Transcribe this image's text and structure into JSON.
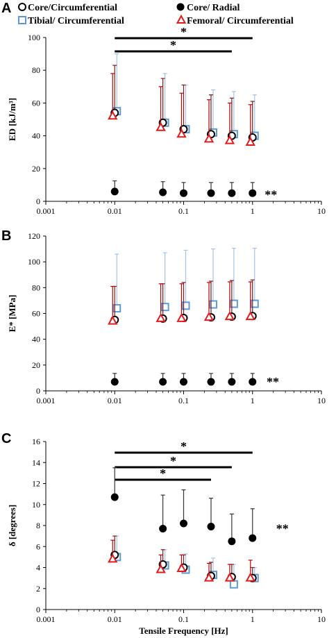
{
  "legend": [
    {
      "series": "core_circ",
      "label": "Core/Circumferential"
    },
    {
      "series": "core_radial",
      "label": "Core/ Radial"
    },
    {
      "series": "tibial_circ",
      "label": "Tibial/ Circumferential"
    },
    {
      "series": "femoral_circ",
      "label": "Femoral/ Circumferential"
    }
  ],
  "series_styles": {
    "core_circ": {
      "marker": "open-circle",
      "color": "#000000",
      "error_color": "#7a1a1a"
    },
    "core_radial": {
      "marker": "filled-circle",
      "color": "#000000",
      "error_color": "#333333"
    },
    "tibial_circ": {
      "marker": "open-square",
      "color": "#5b9bd5",
      "error_color": "#a6c3e3"
    },
    "femoral_circ": {
      "marker": "open-triangle",
      "color": "#e31a1c",
      "error_color": "#c00000"
    }
  },
  "xlabel_shared": "Tensile Frequency [Hz]",
  "chart_data": [
    {
      "panel": "A",
      "type": "scatter",
      "xscale": "log",
      "xlim": [
        0.001,
        10
      ],
      "xticks": [
        "0.001",
        "0.01",
        "0.1",
        "1",
        "10"
      ],
      "ylabel": "ED [kJ/m³]",
      "ylim": [
        0,
        100
      ],
      "yticks": [
        "0",
        "20",
        "40",
        "60",
        "80",
        "100"
      ],
      "x": [
        0.01,
        0.05,
        0.1,
        0.25,
        0.5,
        1
      ],
      "series": [
        {
          "key": "core_circ",
          "name": "Core/Circumferential",
          "values": [
            54,
            48,
            44,
            41,
            40,
            39
          ],
          "error": [
            29,
            27,
            27,
            24,
            23,
            22
          ]
        },
        {
          "key": "core_radial",
          "name": "Core/ Radial",
          "values": [
            6,
            5.5,
            5,
            5,
            5,
            5
          ],
          "error": [
            6.5,
            6.5,
            6.5,
            6.5,
            6.5,
            6.5
          ]
        },
        {
          "key": "tibial_circ",
          "name": "Tibial/ Circumferential",
          "values": [
            55,
            48,
            44,
            42,
            41,
            40
          ],
          "error": [
            35,
            30,
            27,
            26,
            26,
            25
          ]
        },
        {
          "key": "femoral_circ",
          "name": "Femoral/ Circumferential",
          "values": [
            52,
            45,
            41,
            38,
            37,
            36
          ],
          "error": [
            26,
            25,
            25,
            24,
            23,
            23
          ]
        }
      ],
      "significance_bars": [
        {
          "from": 0.01,
          "to": 1,
          "label": "*"
        },
        {
          "from": 0.01,
          "to": 0.5,
          "label": "*"
        }
      ],
      "annotations": [
        {
          "x": 1.5,
          "y": 4,
          "label": "**"
        }
      ]
    },
    {
      "panel": "B",
      "type": "scatter",
      "xscale": "log",
      "xlim": [
        0.001,
        10
      ],
      "xticks": [
        "0.001",
        "0.01",
        "0.1",
        "1",
        "10"
      ],
      "ylabel": "E* [MPa]",
      "ylim": [
        0,
        120
      ],
      "yticks": [
        "0",
        "20",
        "40",
        "60",
        "80",
        "100",
        "120"
      ],
      "x": [
        0.01,
        0.05,
        0.1,
        0.25,
        0.5,
        1
      ],
      "series": [
        {
          "key": "core_circ",
          "name": "Core/Circumferential",
          "values": [
            55,
            56,
            56.5,
            57,
            57.5,
            58
          ],
          "error": [
            26,
            27,
            27.5,
            28,
            28,
            28
          ]
        },
        {
          "key": "core_radial",
          "name": "Core/ Radial",
          "values": [
            7,
            7,
            7,
            7,
            7,
            7
          ],
          "error": [
            6.5,
            6.5,
            6.5,
            6.5,
            6.5,
            6.5
          ]
        },
        {
          "key": "tibial_circ",
          "name": "Tibial/ Circumferential",
          "values": [
            64,
            65,
            66,
            67,
            67.5,
            67.5
          ],
          "error": [
            42,
            42,
            43,
            43,
            43,
            43
          ]
        },
        {
          "key": "femoral_circ",
          "name": "Femoral/ Circumferential",
          "values": [
            54,
            56,
            56,
            57,
            57.5,
            57.5
          ],
          "error": [
            27,
            27,
            27,
            27,
            27,
            27
          ]
        }
      ],
      "significance_bars": [],
      "annotations": [
        {
          "x": 1.6,
          "y": 7,
          "label": "**"
        }
      ]
    },
    {
      "panel": "C",
      "type": "scatter",
      "xscale": "log",
      "xlim": [
        0.001,
        10
      ],
      "xticks": [
        "0.001",
        "0.01",
        "0.1",
        "1",
        "10"
      ],
      "xlabel": "Tensile Frequency [Hz]",
      "ylabel": "δ [degrees]",
      "ylim": [
        0,
        16
      ],
      "yticks": [
        "0",
        "2",
        "4",
        "6",
        "8",
        "10",
        "12",
        "14",
        "16"
      ],
      "x": [
        0.01,
        0.05,
        0.1,
        0.25,
        0.5,
        1
      ],
      "series": [
        {
          "key": "core_circ",
          "name": "Core/Circumferential",
          "values": [
            5.2,
            4.3,
            4.0,
            3.2,
            3.1,
            3.0
          ],
          "error": [
            1.8,
            1.4,
            1.2,
            1.3,
            1.2,
            1.0
          ]
        },
        {
          "key": "core_radial",
          "name": "Core/ Radial",
          "values": [
            10.7,
            7.7,
            8.2,
            7.9,
            6.5,
            6.8
          ],
          "error": [
            2.8,
            3.2,
            3.2,
            2.7,
            2.6,
            2.8
          ]
        },
        {
          "key": "tibial_circ",
          "name": "Tibial/ Circumferential",
          "values": [
            5.0,
            4.2,
            3.8,
            3.3,
            2.4,
            3.0
          ],
          "error": [
            2.0,
            1.5,
            1.5,
            1.6,
            1.9,
            1.0
          ]
        },
        {
          "key": "femoral_circ",
          "name": "Femoral/ Circumferential",
          "values": [
            4.8,
            3.8,
            3.9,
            3.0,
            3.0,
            3.0
          ],
          "error": [
            1.8,
            1.4,
            1.3,
            1.4,
            1.3,
            1.7
          ]
        }
      ],
      "significance_bars": [
        {
          "from": 0.01,
          "to": 1,
          "label": "*"
        },
        {
          "from": 0.01,
          "to": 0.5,
          "label": "*"
        },
        {
          "from": 0.01,
          "to": 0.25,
          "label": "*"
        }
      ],
      "annotations": [
        {
          "x": 2.2,
          "y": 7.7,
          "label": "**"
        }
      ]
    }
  ]
}
